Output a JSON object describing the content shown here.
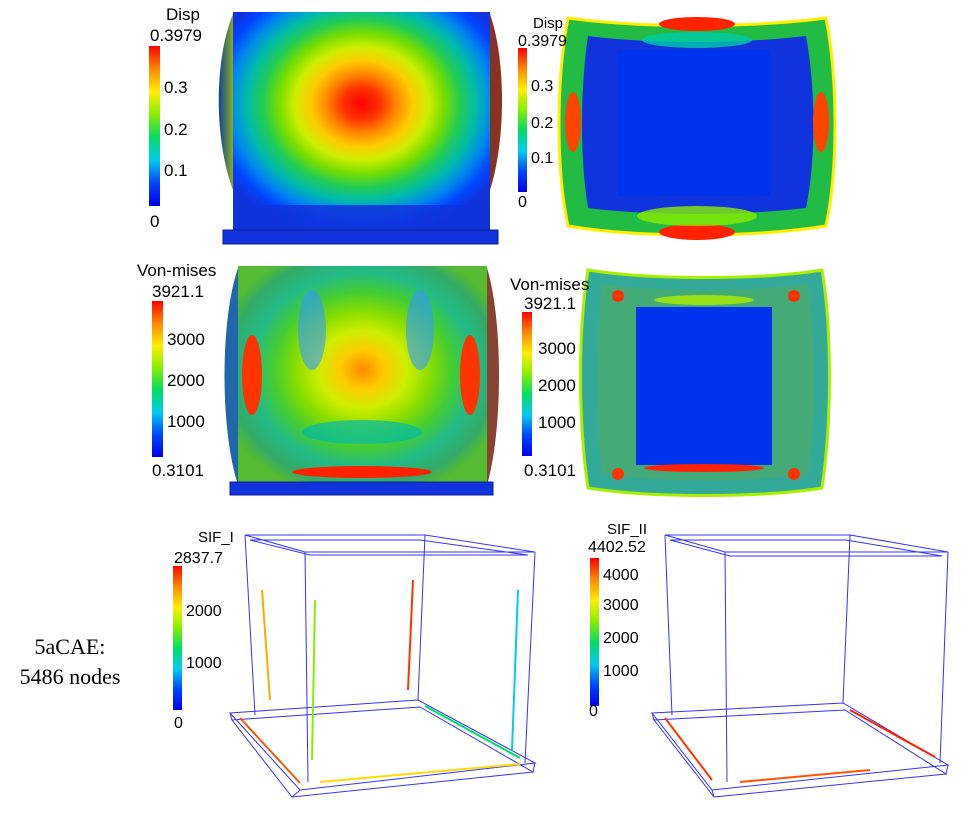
{
  "colors": {
    "scale": [
      "#0000ff",
      "#0055ff",
      "#00aaff",
      "#00ffaa",
      "#00ff00",
      "#aaff00",
      "#ffff00",
      "#ffaa00",
      "#ff5500",
      "#ff0000"
    ],
    "deep_blue": "#1133dd",
    "wire": "#3333ff"
  },
  "panels": {
    "disp_front": {
      "title": "Disp",
      "ticks": [
        "0.3979",
        "0.3",
        "0.2",
        "0.1",
        "0"
      ]
    },
    "disp_top": {
      "title": "Disp",
      "ticks": [
        "0.3979",
        "0.3",
        "0.2",
        "0.1",
        "0"
      ]
    },
    "vm_front": {
      "title": "Von-mises",
      "ticks": [
        "3921.1",
        "3000",
        "2000",
        "1000",
        "0.3101"
      ]
    },
    "vm_top": {
      "title": "Von-mises",
      "ticks": [
        "3921.1",
        "3000",
        "2000",
        "1000",
        "0.3101"
      ]
    },
    "sif1": {
      "title": "SIF_I",
      "ticks": [
        "2837.7",
        "2000",
        "1000",
        "0"
      ]
    },
    "sif2": {
      "title": "SIF_II",
      "ticks": [
        "4402.52",
        "4000",
        "3000",
        "2000",
        "1000",
        "0"
      ]
    }
  },
  "model_label": {
    "line1": "5aCAE:",
    "line2": "5486 nodes"
  }
}
